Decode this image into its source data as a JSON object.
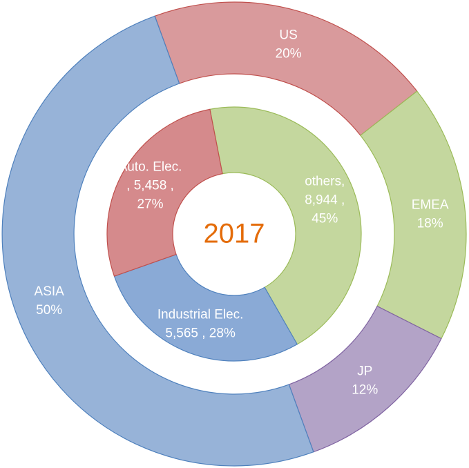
{
  "chart_data": [
    {
      "type": "donut",
      "center_label": "2017",
      "labels": [
        [
          "US",
          "20%"
        ],
        [
          "EMEA",
          "18%"
        ],
        [
          "JP",
          "12%"
        ],
        [
          "ASIA",
          "50%"
        ]
      ],
      "values": [
        20,
        18,
        12,
        50
      ],
      "colors": [
        "#d99a9c",
        "#c4d79e",
        "#b3a3c7",
        "#97b3d8"
      ],
      "edge_colors": [
        "#c0504d",
        "#9bbb59",
        "#8064a2",
        "#4f81bd"
      ]
    },
    {
      "type": "donut",
      "labels": [
        [
          "others,",
          "8,944 ,",
          "45%"
        ],
        [
          "Industrial Elec.",
          "5,565 , 28%"
        ],
        [
          "Auto. Elec.",
          ", 5,458 ,",
          "27%"
        ]
      ],
      "values": [
        8944,
        5565,
        5458
      ],
      "colors": [
        "#c4d79e",
        "#8aaad6",
        "#d58a8c"
      ],
      "edge_colors": [
        "#9bbb59",
        "#4f81bd",
        "#c0504d"
      ]
    }
  ]
}
